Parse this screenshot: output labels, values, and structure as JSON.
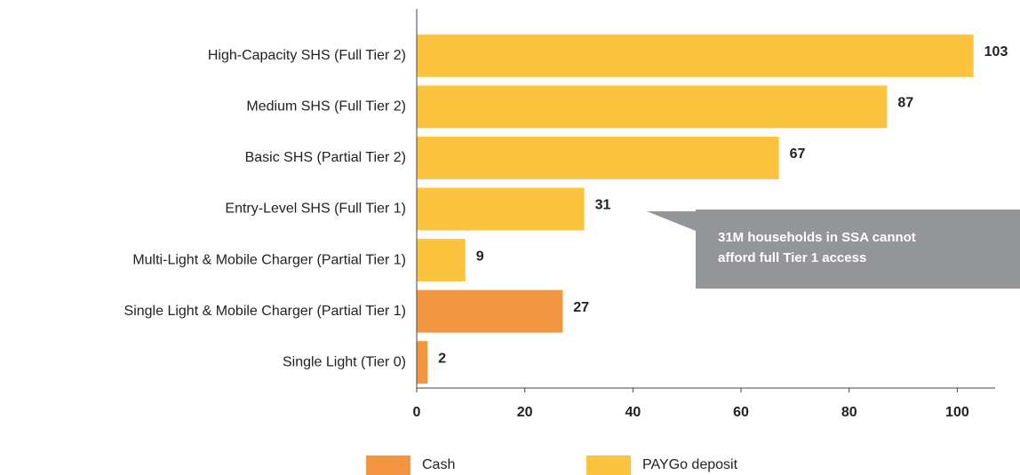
{
  "chart_data": {
    "type": "bar",
    "orientation": "horizontal",
    "stacked": true,
    "categories": [
      "High-Capacity SHS (Full Tier 2)",
      "Medium SHS (Full Tier 2)",
      "Basic SHS (Partial Tier 2)",
      "Entry-Level SHS (Full Tier 1)",
      "Multi-Light & Mobile Charger (Partial Tier 1)",
      "Single Light & Mobile Charger (Partial Tier 1)",
      "Single Light (Tier 0)"
    ],
    "series": [
      {
        "name": "Cash",
        "color": "#f39642",
        "values": [
          null,
          null,
          null,
          null,
          null,
          27,
          2
        ]
      },
      {
        "name": "PAYGo deposit",
        "color": "#fcc33f",
        "values": [
          103,
          87,
          67,
          31,
          9,
          null,
          null
        ]
      }
    ],
    "xlim": [
      0,
      107
    ],
    "xticks": [
      0,
      20,
      40,
      60,
      80,
      100
    ],
    "annotation": [
      "31M households in SSA cannot",
      "afford full Tier 1 access"
    ],
    "legend": "bottom"
  }
}
